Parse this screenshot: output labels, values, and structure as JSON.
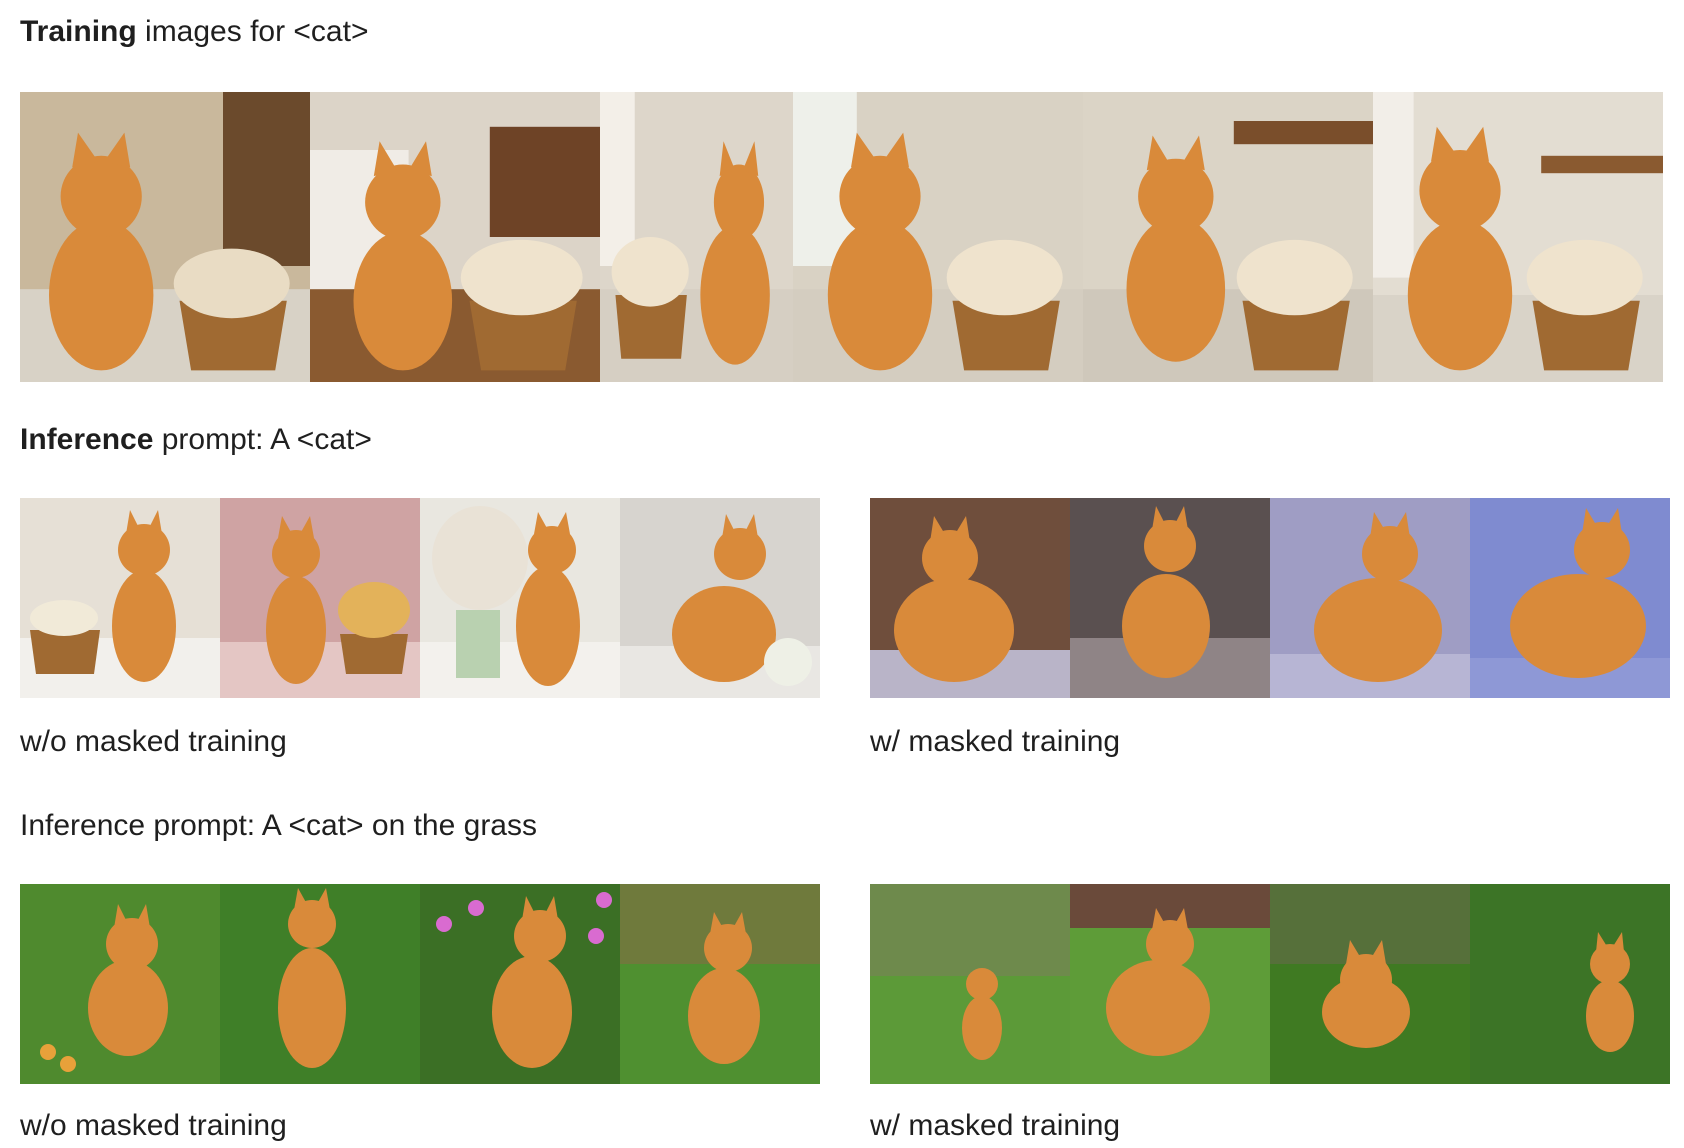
{
  "training": {
    "heading_bold": "Training",
    "heading_rest": " images for <cat>"
  },
  "inference1": {
    "heading_bold": "Inference",
    "heading_rest": " prompt: A <cat>",
    "left_caption": "w/o masked training",
    "right_caption": "w/ masked training"
  },
  "inference2": {
    "heading": "Inference prompt: A <cat> on the grass",
    "left_caption": "w/o masked training",
    "right_caption": "w/ masked training"
  },
  "colors": {
    "cat": "#d98a3a",
    "cat_stripe": "#b8621f",
    "basket": "#a06a32",
    "grass": "#4f8a2e",
    "room_light": "#e8e0d2"
  }
}
